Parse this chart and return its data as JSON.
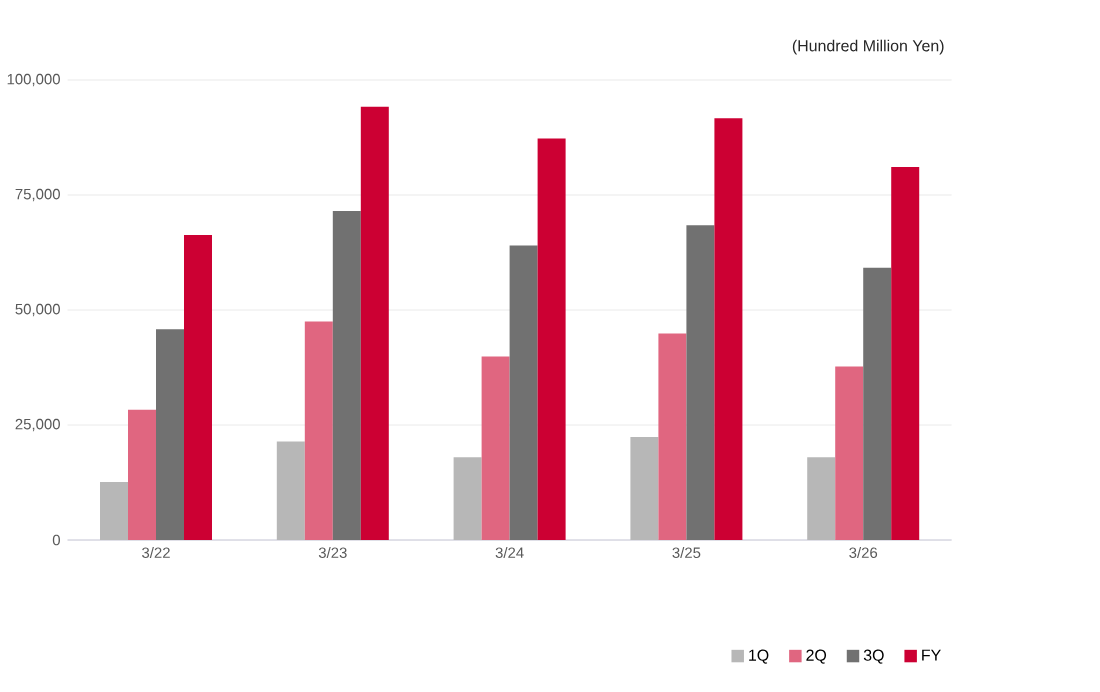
{
  "chart_data": {
    "type": "bar",
    "ylabel": "(Hundred Million Yen)",
    "categories": [
      "3/22",
      "3/23",
      "3/24",
      "3/25",
      "3/26"
    ],
    "series": [
      {
        "name": "1Q",
        "color": "#b7b7b7",
        "values": [
          12600,
          21400,
          18000,
          22400,
          18000
        ]
      },
      {
        "name": "2Q",
        "color": "#e06680",
        "values": [
          28300,
          47500,
          39900,
          44900,
          37700
        ]
      },
      {
        "name": "3Q",
        "color": "#717171",
        "values": [
          45800,
          71500,
          64000,
          68400,
          59200
        ]
      },
      {
        "name": "FY",
        "color": "#cc0033",
        "values": [
          66300,
          94200,
          87300,
          91700,
          81100
        ]
      }
    ],
    "ylim": [
      0,
      100000
    ],
    "yticks": [
      0,
      {
        "value": 25000,
        "label": "25,000"
      },
      {
        "value": 50000,
        "label": "50,000"
      },
      {
        "value": 75000,
        "label": "75,000"
      },
      {
        "value": 100000,
        "label": "100,000"
      }
    ],
    "grid": "y",
    "legend": "bottom right"
  }
}
